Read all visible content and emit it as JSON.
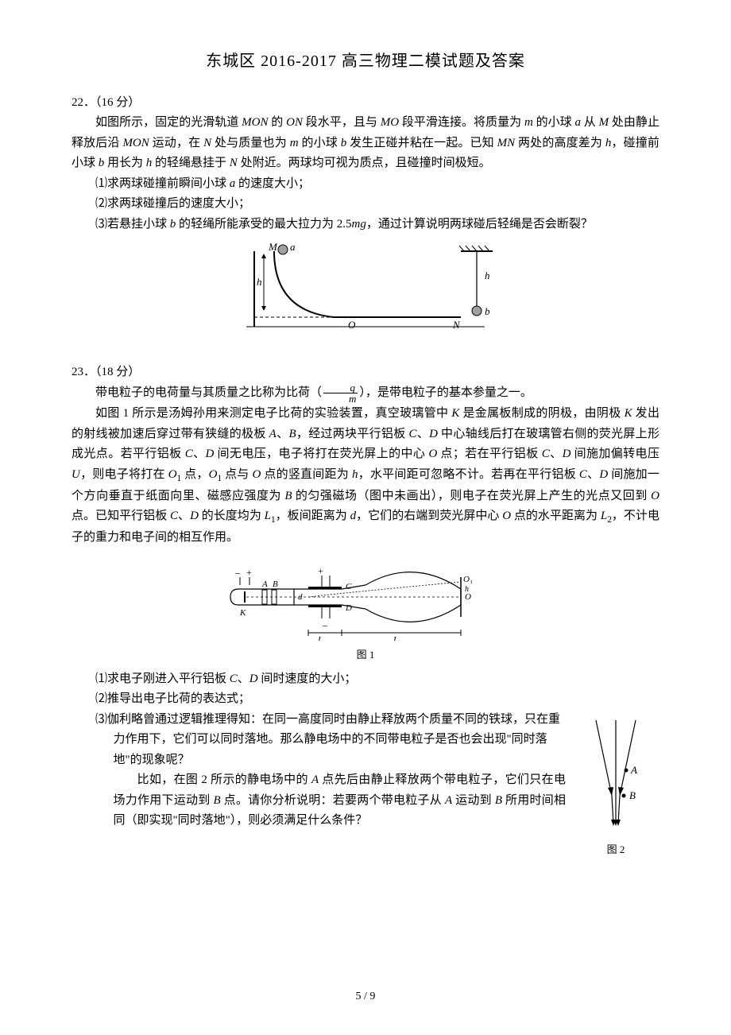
{
  "title": "东城区 2016-2017 高三物理二模试题及答案",
  "q22": {
    "header": "22．（16 分）",
    "p1": "如图所示，固定的光滑轨道 <span class='italic'>MON</span> 的 <span class='italic'>ON</span> 段水平，且与 <span class='italic'>MO</span> 段平滑连接。将质量为 <span class='italic'>m</span> 的小球 <span class='italic'>a</span> 从 <span class='italic'>M</span> 处由静止释放后沿 <span class='italic'>MON</span> 运动，在 <span class='italic'>N</span> 处与质量也为 <span class='italic'>m</span> 的小球 <span class='italic'>b</span> 发生正碰并粘在一起。已知 <span class='italic'>MN</span> 两处的高度差为 <span class='italic'>h</span>，碰撞前小球 <span class='italic'>b</span> 用长为 <span class='italic'>h</span> 的轻绳悬挂于 <span class='italic'>N</span> 处附近。两球均可视为质点，且碰撞时间极短。",
    "s1": "⑴求两球碰撞前瞬间小球 <span class='italic'>a</span> 的速度大小；",
    "s2": "⑵求两球碰撞后的速度大小；",
    "s3": "⑶若悬挂小球 <span class='italic'>b</span> 的轻绳所能承受的最大拉力为 2.5<span class='italic'>mg</span>，通过计算说明两球碰后轻绳是否会断裂？",
    "diagram": {
      "labels": {
        "M": "M",
        "a": "a",
        "O": "O",
        "N": "N",
        "b": "b",
        "h1": "h",
        "h2": "h"
      },
      "colors": {
        "stroke": "#000000",
        "ball_fill": "#a0a0a0"
      }
    }
  },
  "q23": {
    "header": "23．（18 分）",
    "p1_a": "带电粒子的电荷量与其质量之比称为比荷（",
    "p1_b": "），是带电粒子的基本参量之一。",
    "frac": {
      "num": "q",
      "den": "m"
    },
    "p2": "如图 1 所示是汤姆孙用来测定电子比荷的实验装置，真空玻璃管中 <span class='italic'>K</span> 是金属板制成的阴极，由阴极 <span class='italic'>K</span> 发出的射线被加速后穿过带有狭缝的极板 <span class='italic'>A</span>、<span class='italic'>B</span>，经过两块平行铝板 <span class='italic'>C</span>、<span class='italic'>D</span> 中心轴线后打在玻璃管右侧的荧光屏上形成光点。若平行铝板 <span class='italic'>C</span>、<span class='italic'>D</span> 间无电压，电子将打在荧光屏上的中心 <span class='italic'>O</span> 点；若在平行铝板 <span class='italic'>C</span>、<span class='italic'>D</span> 间施加偏转电压 <span class='italic'>U</span>，则电子将打在 <span class='italic'>O</span><span class='sub1'>1</span> 点，<span class='italic'>O</span><span class='sub1'>1</span> 点与 <span class='italic'>O</span> 点的竖直间距为 <span class='italic'>h</span>，水平间距可忽略不计。若再在平行铝板 <span class='italic'>C</span>、<span class='italic'>D</span> 间施加一个方向垂直于纸面向里、磁感应强度为 <span class='italic'>B</span> 的匀强磁场（图中未画出），则电子在荧光屏上产生的光点又回到 <span class='italic'>O</span> 点。已知平行铝板 <span class='italic'>C</span>、<span class='italic'>D</span> 的长度均为 <span class='italic'>L</span><span class='sub1'>1</span>，板间距离为 <span class='italic'>d</span>，它们的右端到荧光屏中心 <span class='italic'>O</span> 点的水平距离为 <span class='italic'>L</span><span class='sub1'>2</span>，不计电子的重力和电子间的相互作用。",
    "fig1_label": "图 1",
    "fig1": {
      "labels": {
        "K": "K",
        "A": "A",
        "B": "B",
        "C": "C",
        "D": "D",
        "d": "d",
        "L1": "L₁",
        "L2": "L₂",
        "O": "O",
        "O1": "O₁",
        "h": "h",
        "plus": "+",
        "minus": "–"
      },
      "colors": {
        "stroke": "#000000"
      }
    },
    "s1": "⑴求电子刚进入平行铝板 <span class='italic'>C</span>、<span class='italic'>D</span> 间时速度的大小；",
    "s2": "⑵推导出电子比荷的表达式；",
    "s3a": "⑶伽利略曾通过逻辑推理得知：在同一高度同时由静止释放两个质量不同的铁球，只在重力作用下，它们可以同时落地。那么静电场中的不同带电粒子是否也会出现\"同时落地\"的现象呢？",
    "s3b": "比如，在图 2 所示的静电场中的 <span class='italic'>A</span> 点先后由静止释放两个带电粒子，它们只在电场力作用下运动到 <span class='italic'>B</span> 点。请你分析说明：若要两个带电粒子从 <span class='italic'>A</span> 运动到 <span class='italic'>B</span> 所用时间相同（即实现\"同时落地\"），则必须满足什么条件？",
    "fig2_label": "图 2",
    "fig2": {
      "labels": {
        "A": "A",
        "B": "B"
      },
      "colors": {
        "stroke": "#000000"
      }
    }
  },
  "pagenum": "5 / 9"
}
